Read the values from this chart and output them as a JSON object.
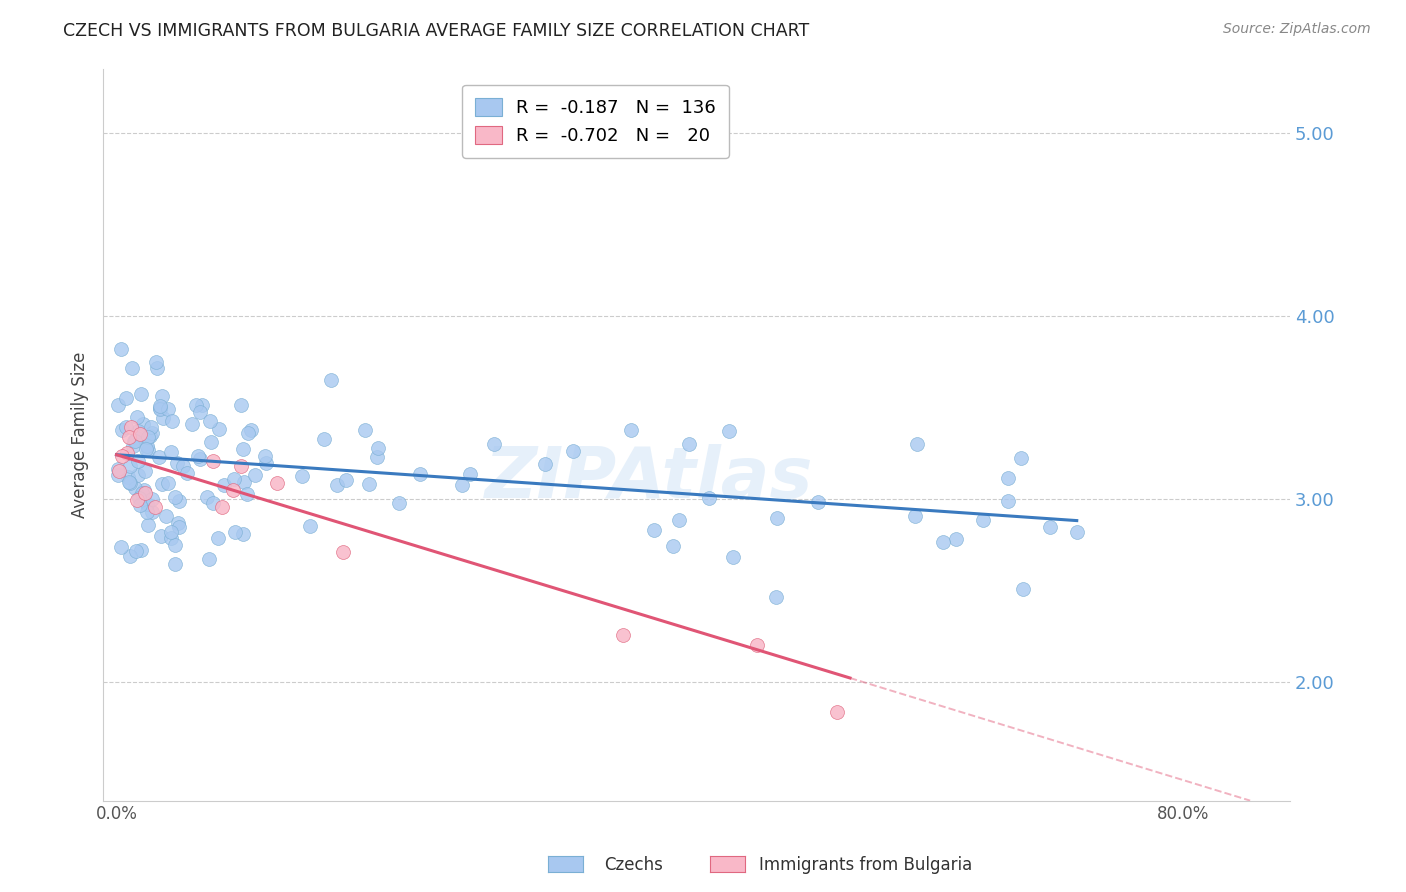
{
  "title": "CZECH VS IMMIGRANTS FROM BULGARIA AVERAGE FAMILY SIZE CORRELATION CHART",
  "source": "Source: ZipAtlas.com",
  "ylabel": "Average Family Size",
  "ytick_color": "#5b9bd5",
  "yticks_right": [
    2.0,
    3.0,
    4.0,
    5.0
  ],
  "watermark": "ZIPAtlas",
  "legend_entry1_r": "-0.187",
  "legend_entry1_n": "136",
  "legend_entry2_r": "-0.702",
  "legend_entry2_n": "20",
  "scatter_czech_color": "#a8c8f0",
  "scatter_czech_edge": "#7aafd4",
  "scatter_czech_alpha": 0.8,
  "scatter_czech_size": 100,
  "scatter_bulgaria_color": "#f9b8c8",
  "scatter_bulgaria_edge": "#e06880",
  "scatter_bulgaria_alpha": 0.85,
  "scatter_bulgaria_size": 100,
  "trendline_czech_color": "#3a7abf",
  "trendline_czech_lw": 2.2,
  "trendline_czech_x0": 0.0,
  "trendline_czech_x1": 72.0,
  "trendline_czech_y0": 3.24,
  "trendline_czech_y1": 2.88,
  "trendline_bulg_color": "#e05575",
  "trendline_bulg_lw": 2.2,
  "trendline_bulg_x0": 0.0,
  "trendline_bulg_x1": 55.0,
  "trendline_bulg_y0": 3.24,
  "trendline_bulg_y1": 2.02,
  "trendline_bulg_dash_x0": 55.0,
  "trendline_bulg_dash_x1": 85.0,
  "trendline_bulg_dash_y0": 2.02,
  "trendline_bulg_dash_y1": 1.35,
  "xlim_left": -1.0,
  "xlim_right": 88.0,
  "ylim_bottom": 1.35,
  "ylim_top": 5.35
}
